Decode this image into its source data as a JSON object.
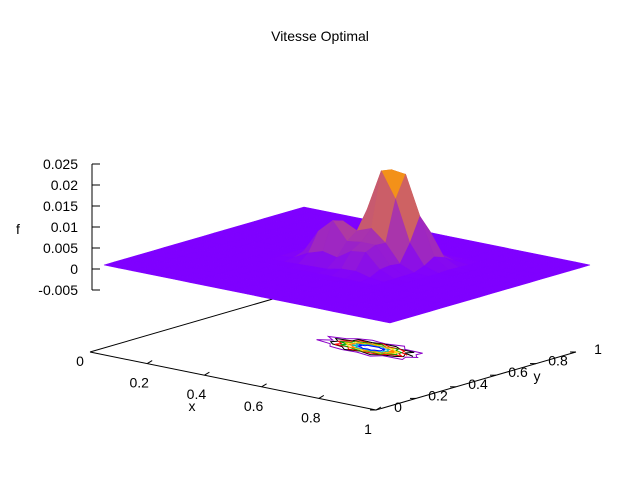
{
  "chart_data": {
    "type": "surface3d",
    "title": "Vitesse Optimal",
    "xlabel": "x",
    "ylabel": "y",
    "zlabel": "f",
    "xlim": [
      0,
      1
    ],
    "ylim": [
      0,
      1
    ],
    "zlim": [
      -0.005,
      0.025
    ],
    "x_ticks": [
      "0.2",
      "0.4",
      "0.6",
      "0.8",
      "1"
    ],
    "y_ticks": [
      "0",
      "0.2",
      "0.4",
      "0.6",
      "0.8",
      "1"
    ],
    "z_ticks": [
      "0.025",
      "0.02",
      "0.015",
      "0.01",
      "0.005",
      "0",
      "-0.005"
    ],
    "origin_label": "0",
    "grid": false,
    "surface_base_color": "#7f00ff",
    "surface_peak_color": "#ffa000",
    "contour_colors": [
      "#8b00c8",
      "#000000",
      "#ff0000",
      "#00a000",
      "#ffd000",
      "#ff8000",
      "#00c0c0",
      "#0000ff"
    ],
    "peaks": [
      {
        "x": 0.55,
        "y": 0.62,
        "f": 0.022
      },
      {
        "x": 0.62,
        "y": 0.66,
        "f": 0.013
      },
      {
        "x": 0.44,
        "y": 0.52,
        "f": 0.011
      },
      {
        "x": 0.58,
        "y": 0.48,
        "f": 0.007
      }
    ]
  }
}
